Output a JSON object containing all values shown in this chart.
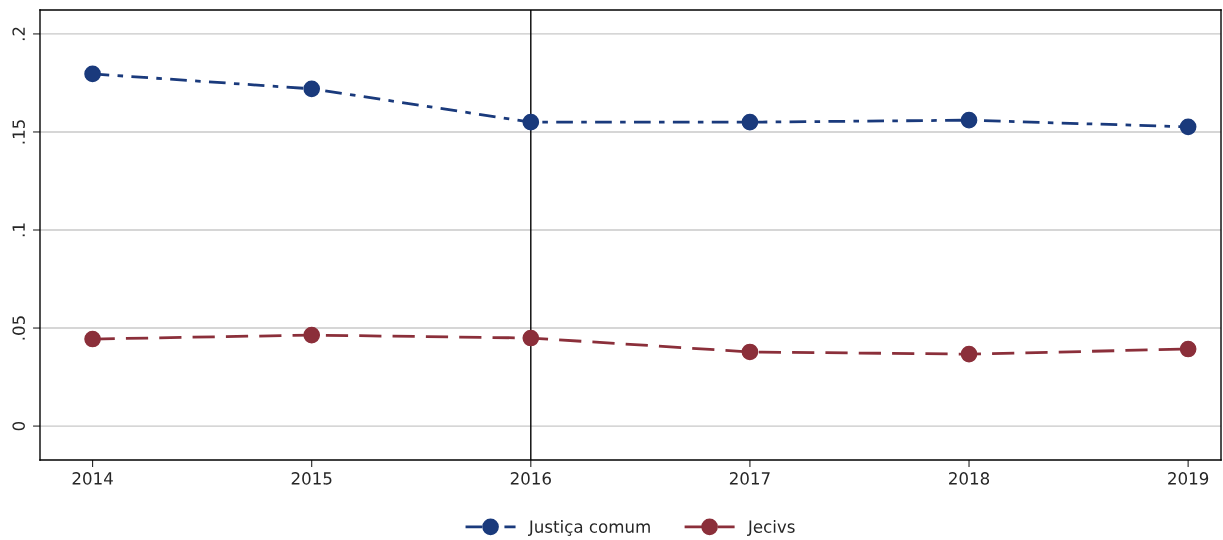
{
  "chart_data": {
    "type": "line",
    "x": [
      2014,
      2015,
      2016,
      2017,
      2018,
      2019
    ],
    "series": [
      {
        "name": "Justiça comum",
        "color": "#1a3a7c",
        "values": [
          0.1796,
          0.172,
          0.155,
          0.155,
          0.156,
          0.1526
        ],
        "line_style": "dashdot"
      },
      {
        "name": "Jecivs",
        "color": "#8b2f3a",
        "values": [
          0.0444,
          0.0464,
          0.0449,
          0.0378,
          0.0367,
          0.0393
        ],
        "line_style": "dashed"
      }
    ],
    "xlim": [
      2013.76,
      2019.15
    ],
    "xticks": [
      2014,
      2015,
      2016,
      2017,
      2018,
      2019
    ],
    "ylim": [
      -0.0173,
      0.2122
    ],
    "yticks": [
      {
        "value": 0,
        "label": "0"
      },
      {
        "value": 0.05,
        "label": ".05"
      },
      {
        "value": 0.1,
        "label": ".1"
      },
      {
        "value": 0.15,
        "label": ".15"
      },
      {
        "value": 0.2,
        "label": ".2"
      }
    ],
    "ref_lines": [
      {
        "axis": "x",
        "value": 2016,
        "color": "#000000",
        "line_style": "solid"
      }
    ],
    "grid": "y",
    "legend": "bottom",
    "marker": "circle"
  }
}
